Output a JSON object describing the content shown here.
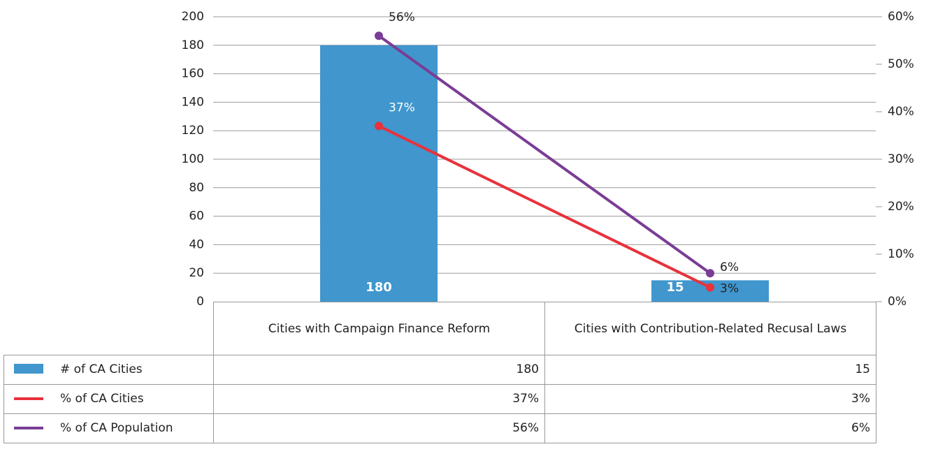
{
  "chart_data": {
    "type": "bar",
    "categories": [
      "Cities with Campaign Finance Reform",
      "Cities with Contribution-Related Recusal Laws"
    ],
    "series": [
      {
        "name": "# of CA Cities",
        "type": "bar",
        "color": "#4096cd",
        "values": [
          180,
          15
        ]
      },
      {
        "name": "% of CA Cities",
        "type": "line",
        "axis": "y2",
        "color": "#e8323c",
        "values": [
          37,
          3
        ],
        "value_labels": [
          "37%",
          "3%"
        ]
      },
      {
        "name": "% of CA Population",
        "type": "line",
        "axis": "y2",
        "color": "#7a3d96",
        "values": [
          56,
          6
        ],
        "value_labels": [
          "56%",
          "6%"
        ]
      }
    ],
    "ylim": [
      0,
      200
    ],
    "yticks": [
      0,
      20,
      40,
      60,
      80,
      100,
      120,
      140,
      160,
      180,
      200
    ],
    "y2lim": [
      0,
      60
    ],
    "y2ticks": [
      {
        "value": 0,
        "label": "0%"
      },
      {
        "value": 10,
        "label": "10%"
      },
      {
        "value": 20,
        "label": "20%"
      },
      {
        "value": 30,
        "label": "30%"
      },
      {
        "value": 40,
        "label": "40%"
      },
      {
        "value": 50,
        "label": "50%"
      },
      {
        "value": 60,
        "label": "60%"
      }
    ],
    "grid": true
  }
}
